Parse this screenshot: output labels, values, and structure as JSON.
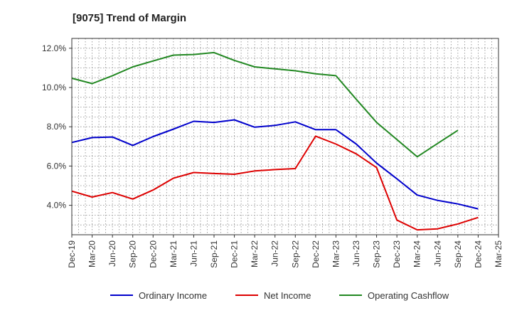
{
  "chart_data": {
    "type": "line",
    "title": "[9075]  Trend of Margin",
    "xlabel": "",
    "ylabel": "",
    "categories": [
      "Dec-19",
      "Mar-20",
      "Jun-20",
      "Sep-20",
      "Dec-20",
      "Mar-21",
      "Jun-21",
      "Sep-21",
      "Dec-21",
      "Mar-22",
      "Jun-22",
      "Sep-22",
      "Dec-22",
      "Mar-23",
      "Jun-23",
      "Sep-23",
      "Dec-23",
      "Mar-24",
      "Jun-24",
      "Sep-24",
      "Dec-24",
      "Mar-25"
    ],
    "ylim": [
      2.5,
      12.5
    ],
    "yticks": [
      4.0,
      6.0,
      8.0,
      10.0,
      12.0
    ],
    "ytick_labels": [
      "4.0%",
      "6.0%",
      "8.0%",
      "10.0%",
      "12.0%"
    ],
    "grid": true,
    "legend_position": "bottom",
    "series": [
      {
        "name": "Ordinary Income",
        "color": "#0000cc",
        "values": [
          7.2,
          7.45,
          7.48,
          7.05,
          7.5,
          7.88,
          8.28,
          8.22,
          8.35,
          7.98,
          8.07,
          8.25,
          7.85,
          7.85,
          7.12,
          6.15,
          5.35,
          4.52,
          4.25,
          4.07,
          3.82,
          null
        ]
      },
      {
        "name": "Net Income",
        "color": "#dd0000",
        "values": [
          4.72,
          4.42,
          4.65,
          4.32,
          4.78,
          5.38,
          5.67,
          5.62,
          5.58,
          5.75,
          5.82,
          5.87,
          7.52,
          7.12,
          6.62,
          5.92,
          3.25,
          2.75,
          2.8,
          3.05,
          3.38,
          null
        ]
      },
      {
        "name": "Operating Cashflow",
        "color": "#228822",
        "values": [
          10.47,
          10.2,
          10.6,
          11.05,
          11.35,
          11.65,
          11.68,
          11.78,
          11.38,
          11.05,
          10.95,
          10.85,
          10.7,
          10.6,
          9.4,
          8.22,
          7.35,
          6.47,
          7.15,
          7.82,
          null,
          null
        ]
      }
    ]
  }
}
